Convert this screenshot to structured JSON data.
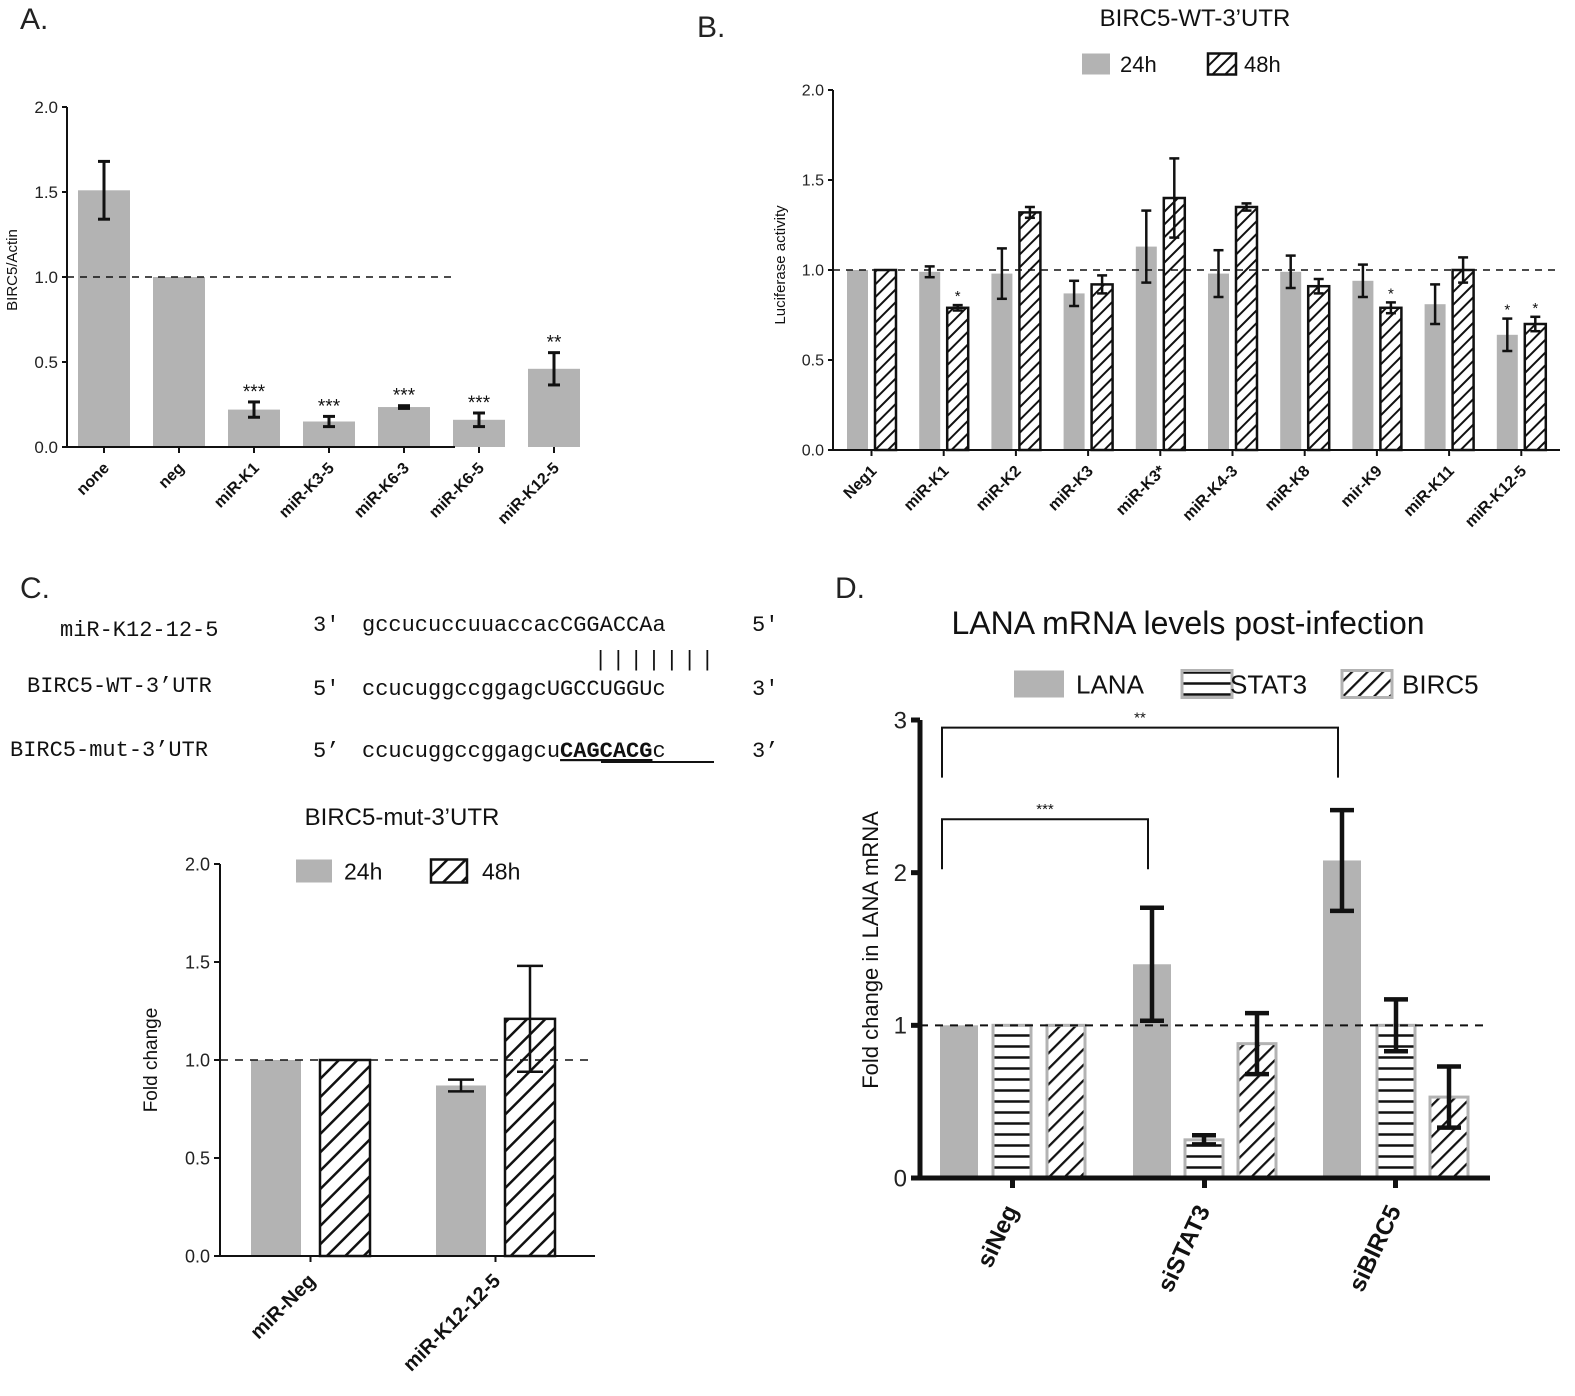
{
  "panel_letters": {
    "a": "A.",
    "b": "B.",
    "c": "C.",
    "d": "D."
  },
  "chart_data": [
    {
      "id": "A",
      "type": "bar",
      "title": "",
      "xlabel": "",
      "ylabel": "BIRC5/Actin",
      "ylim": [
        0,
        2.0
      ],
      "yticks": [
        "0.0",
        "0.5",
        "1.0",
        "1.5",
        "2.0"
      ],
      "ytick_values": [
        0,
        0.5,
        1.0,
        1.5,
        2.0
      ],
      "reference_line": 1.0,
      "categories": [
        "none",
        "neg",
        "miR-K1",
        "miR-K3-5",
        "miR-K6-3",
        "miR-K6-5",
        "miR-K12-5"
      ],
      "series": [
        {
          "name": "BIRC5/Actin",
          "color": "#b3b3b3",
          "pattern": "solid",
          "values": [
            1.51,
            1.0,
            0.22,
            0.15,
            0.235,
            0.16,
            0.46
          ],
          "errors": [
            0.17,
            0,
            0.045,
            0.03,
            0.008,
            0.04,
            0.095
          ]
        }
      ],
      "annotations": [
        "",
        "",
        "***",
        "***",
        "***",
        "***",
        "**"
      ]
    },
    {
      "id": "B",
      "type": "bar",
      "title": "BIRC5-WT-3’UTR",
      "xlabel": "",
      "ylabel": "Luciferase activity",
      "ylim": [
        0,
        2.0
      ],
      "yticks": [
        "0.0",
        "0.5",
        "1.0",
        "1.5",
        "2.0"
      ],
      "ytick_values": [
        0,
        0.5,
        1.0,
        1.5,
        2.0
      ],
      "reference_line": 1.0,
      "legend": [
        "24h",
        "48h"
      ],
      "legend_position": "top",
      "categories": [
        "Neg1",
        "miR-K1",
        "miR-K2",
        "miR-K3",
        "miR-K3*",
        "miR-K4-3",
        "miR-K8",
        "mir-K9",
        "miR-K11",
        "miR-K12-5"
      ],
      "series": [
        {
          "name": "24h",
          "color": "#b3b3b3",
          "pattern": "solid",
          "values": [
            1.0,
            0.99,
            0.98,
            0.87,
            1.13,
            0.98,
            0.99,
            0.94,
            0.81,
            0.64
          ],
          "errors": [
            0,
            0.03,
            0.14,
            0.07,
            0.2,
            0.13,
            0.09,
            0.09,
            0.11,
            0.09
          ]
        },
        {
          "name": "48h",
          "color": "#ffffff",
          "pattern": "hatch",
          "values": [
            1.0,
            0.79,
            1.32,
            0.92,
            1.4,
            1.35,
            0.91,
            0.79,
            1.0,
            0.7
          ],
          "errors": [
            0,
            0.015,
            0.03,
            0.05,
            0.22,
            0.02,
            0.04,
            0.03,
            0.07,
            0.04
          ]
        }
      ],
      "annotations": [
        {
          "category": "miR-K1",
          "series": "48h",
          "text": "*"
        },
        {
          "category": "mir-K9",
          "series": "48h",
          "text": "*"
        },
        {
          "category": "miR-K12-5",
          "series": "24h",
          "text": "*"
        },
        {
          "category": "miR-K12-5",
          "series": "48h",
          "text": "*"
        }
      ]
    },
    {
      "id": "C",
      "type": "bar",
      "title": "BIRC5-mut-3’UTR",
      "xlabel": "",
      "ylabel": "Fold change",
      "ylim": [
        0,
        2.0
      ],
      "yticks": [
        "0.0",
        "0.5",
        "1.0",
        "1.5",
        "2.0"
      ],
      "ytick_values": [
        0,
        0.5,
        1.0,
        1.5,
        2.0
      ],
      "reference_line": 1.0,
      "legend": [
        "24h",
        "48h"
      ],
      "legend_position": "top",
      "categories": [
        "miR-Neg",
        "miR-K12-12-5"
      ],
      "series": [
        {
          "name": "24h",
          "color": "#b3b3b3",
          "pattern": "solid",
          "values": [
            1.0,
            0.87
          ],
          "errors": [
            0,
            0.03
          ]
        },
        {
          "name": "48h",
          "color": "#ffffff",
          "pattern": "hatch",
          "values": [
            1.0,
            1.21
          ],
          "errors": [
            0,
            0.27
          ]
        }
      ]
    },
    {
      "id": "D",
      "type": "bar",
      "title": "LANA mRNA levels post-infection",
      "xlabel": "",
      "ylabel": "Fold change in  LANA mRNA",
      "ylim": [
        0,
        3
      ],
      "yticks": [
        "0",
        "1",
        "2",
        "3"
      ],
      "ytick_values": [
        0,
        1,
        2,
        3
      ],
      "reference_line": 1.0,
      "legend": [
        "LANA",
        "STAT3",
        "BIRC5"
      ],
      "legend_position": "top",
      "categories": [
        "siNeg",
        "siSTAT3",
        "siBIRC5"
      ],
      "series": [
        {
          "name": "LANA",
          "color": "#b3b3b3",
          "pattern": "solid",
          "values": [
            1.0,
            1.4,
            2.08
          ],
          "errors": [
            0,
            0.37,
            0.33
          ]
        },
        {
          "name": "STAT3",
          "color": "#ffffff",
          "pattern": "horizontal",
          "values": [
            1.0,
            0.25,
            1.0
          ],
          "errors": [
            0,
            0.03,
            0.17
          ]
        },
        {
          "name": "BIRC5",
          "color": "#ffffff",
          "pattern": "diagonal",
          "values": [
            1.0,
            0.88,
            0.53
          ],
          "errors": [
            0,
            0.2,
            0.2
          ]
        }
      ],
      "significance": [
        {
          "from": "siNeg",
          "to": "siSTAT3",
          "text": "***",
          "level": 2.35
        },
        {
          "from": "siNeg",
          "to": "siBIRC5",
          "text": "**",
          "level": 2.95
        }
      ]
    }
  ],
  "alignment": {
    "rows": [
      {
        "label": "miR-K12-12-5",
        "prefix": "3'",
        "seq": "gccucuccuuaccacCGGACCAa",
        "suffix": "5'",
        "bold_underline": ""
      },
      {
        "label": "BIRC5-WT-3’UTR",
        "prefix": "5'",
        "seq": "ccucuggccggagcUGCCUGGUc",
        "suffix": "3'",
        "bold_underline": ""
      },
      {
        "label": "BIRC5-mut-3’UTR",
        "prefix": "5’",
        "seq_before": "ccucuggccggagcu",
        "bold_underline": "CAGCACG",
        "seq_after": "c",
        "suffix": "3’"
      }
    ],
    "pairing": "|||||||"
  }
}
